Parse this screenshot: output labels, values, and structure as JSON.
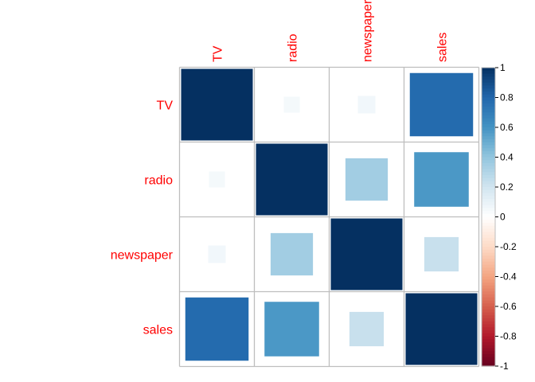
{
  "chart_data": {
    "type": "heatmap",
    "variables": [
      "TV",
      "radio",
      "newspaper",
      "sales"
    ],
    "matrix": [
      [
        1.0,
        0.05,
        0.06,
        0.78
      ],
      [
        0.05,
        1.0,
        0.35,
        0.58
      ],
      [
        0.06,
        0.35,
        1.0,
        0.23
      ],
      [
        0.78,
        0.58,
        0.23,
        1.0
      ]
    ],
    "colorbar": {
      "range": [
        -1,
        1
      ],
      "ticks": [
        "1",
        "0.8",
        "0.6",
        "0.4",
        "0.2",
        "0",
        "-0.2",
        "-0.4",
        "-0.6",
        "-0.8",
        "-1"
      ]
    },
    "label_color": "#ff0000",
    "grid": true
  }
}
